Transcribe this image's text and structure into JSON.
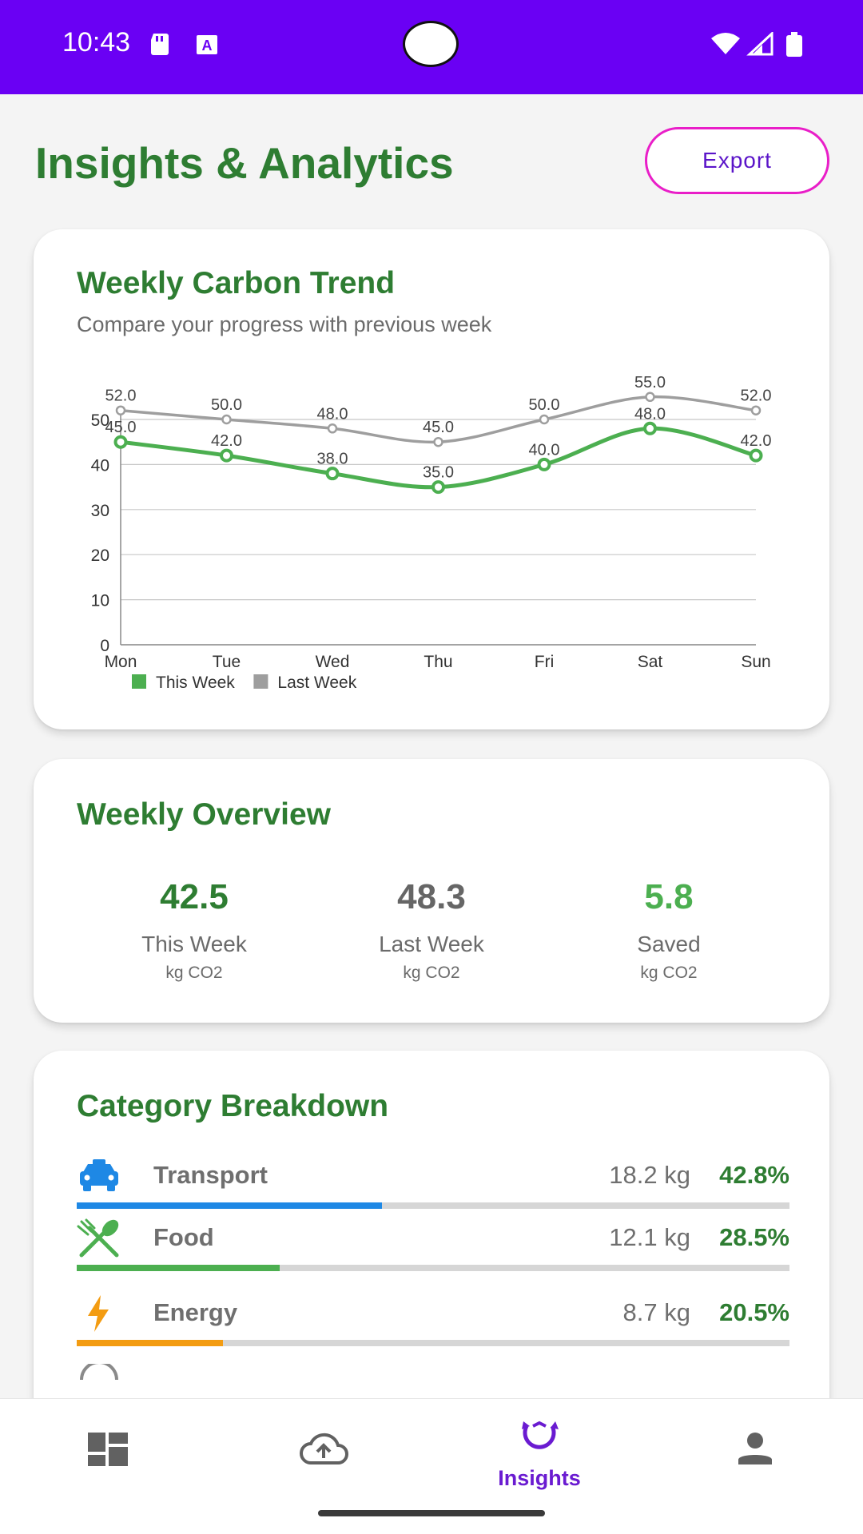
{
  "status_bar": {
    "time": "10:43",
    "bg_color": "#6a00f4",
    "icons": [
      "sd-card-icon",
      "text-a-icon",
      "wifi-icon",
      "signal-icon",
      "battery-icon"
    ]
  },
  "header": {
    "title": "Insights & Analytics",
    "export_label": "Export"
  },
  "trend_card": {
    "title": "Weekly Carbon Trend",
    "subtitle": "Compare your progress with previous week"
  },
  "chart_data": {
    "type": "line",
    "categories": [
      "Mon",
      "Tue",
      "Wed",
      "Thu",
      "Fri",
      "Sat",
      "Sun"
    ],
    "series": [
      {
        "name": "This Week",
        "values": [
          45.0,
          42.0,
          38.0,
          35.0,
          40.0,
          48.0,
          42.0
        ],
        "color": "#4caf50"
      },
      {
        "name": "Last Week",
        "values": [
          52.0,
          50.0,
          48.0,
          45.0,
          50.0,
          55.0,
          52.0
        ],
        "color": "#9e9e9e"
      }
    ],
    "data_labels": {
      "This Week": [
        "45.0",
        "42.0",
        "38.0",
        "35.0",
        "40.0",
        "48.0",
        "42.0"
      ],
      "Last Week": [
        "52.0",
        "50.0",
        "48.0",
        "45.0",
        "50.0",
        "55.0",
        "52.0"
      ]
    },
    "yticks": [
      "0",
      "10",
      "20",
      "30",
      "40",
      "50"
    ],
    "ylim": [
      0,
      50
    ],
    "grid": true,
    "legend_position": "bottom-left",
    "title": "",
    "xlabel": "",
    "ylabel": ""
  },
  "overview": {
    "title": "Weekly Overview",
    "items": [
      {
        "value": "42.5",
        "label": "This Week",
        "unit": "kg CO2",
        "color": "#2e7d32"
      },
      {
        "value": "48.3",
        "label": "Last Week",
        "unit": "kg CO2",
        "color": "#666666"
      },
      {
        "value": "5.8",
        "label": "Saved",
        "unit": "kg CO2",
        "color": "#4caf50"
      }
    ]
  },
  "categories": {
    "title": "Category Breakdown",
    "items": [
      {
        "name": "Transport",
        "kg": "18.2 kg",
        "pct": "42.8%",
        "fraction": 0.428,
        "color": "#1e88e5",
        "icon": "car-icon"
      },
      {
        "name": "Food",
        "kg": "12.1 kg",
        "pct": "28.5%",
        "fraction": 0.285,
        "color": "#4caf50",
        "icon": "utensils-icon"
      },
      {
        "name": "Energy",
        "kg": "8.7 kg",
        "pct": "20.5%",
        "fraction": 0.205,
        "color": "#f39c12",
        "icon": "bolt-icon"
      }
    ]
  },
  "bottom_nav": {
    "active_color": "#6a1bd1",
    "items": [
      {
        "icon": "dashboard-icon",
        "label": ""
      },
      {
        "icon": "cloud-upload-icon",
        "label": ""
      },
      {
        "icon": "insights-icon",
        "label": "Insights"
      },
      {
        "icon": "profile-icon",
        "label": ""
      }
    ]
  }
}
